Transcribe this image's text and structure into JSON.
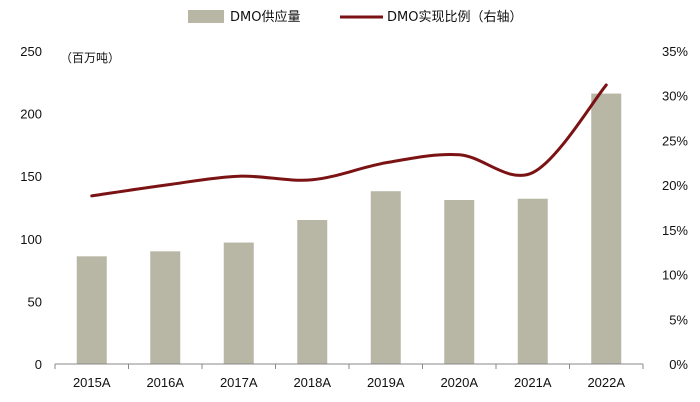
{
  "chart_data": {
    "type": "bar",
    "categories": [
      "2015A",
      "2016A",
      "2017A",
      "2018A",
      "2019A",
      "2020A",
      "2021A",
      "2022A"
    ],
    "series": [
      {
        "name": "DMO供应量",
        "type": "bar",
        "axis": "left",
        "color": "#b8b6a5",
        "values": [
          86,
          90,
          97,
          115,
          138,
          131,
          132,
          216
        ]
      },
      {
        "name": "DMO实现比例（右轴）",
        "type": "line",
        "axis": "right",
        "color": "#7b1214",
        "values": [
          18.8,
          20.0,
          21.0,
          20.6,
          22.5,
          23.4,
          21.4,
          31.2
        ]
      }
    ],
    "yleft": {
      "ylim": [
        0,
        250
      ],
      "ticks": [
        0,
        50,
        100,
        150,
        200,
        250
      ],
      "unit": "（百万吨）"
    },
    "yright": {
      "ylim": [
        0,
        35
      ],
      "ticks": [
        "0%",
        "5%",
        "10%",
        "15%",
        "20%",
        "25%",
        "30%",
        "35%"
      ]
    },
    "legend_position": "top-center",
    "grid": false
  }
}
